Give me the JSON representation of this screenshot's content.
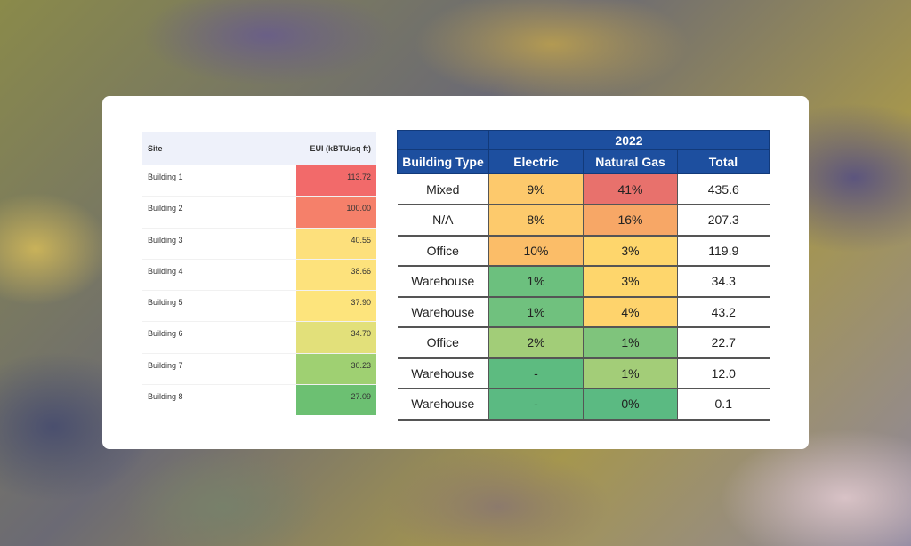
{
  "eui_table": {
    "headers": {
      "site": "Site",
      "eui": "EUI (kBTU/sq ft)"
    },
    "rows": [
      {
        "site": "Building 1",
        "eui": "113.72",
        "color": "#f26a6a"
      },
      {
        "site": "Building 2",
        "eui": "100.00",
        "color": "#f5806a"
      },
      {
        "site": "Building 3",
        "eui": "40.55",
        "color": "#fde07c"
      },
      {
        "site": "Building 4",
        "eui": "38.66",
        "color": "#fde27c"
      },
      {
        "site": "Building 5",
        "eui": "37.90",
        "color": "#fde47c"
      },
      {
        "site": "Building 6",
        "eui": "34.70",
        "color": "#e2e07a"
      },
      {
        "site": "Building 7",
        "eui": "30.23",
        "color": "#9fd072"
      },
      {
        "site": "Building 8",
        "eui": "27.09",
        "color": "#6cc072"
      }
    ]
  },
  "energy_table": {
    "year": "2022",
    "headers": {
      "type": "Building Type",
      "electric": "Electric",
      "gas": "Natural Gas",
      "total": "Total"
    },
    "rows": [
      {
        "type": "Mixed",
        "electric": "9%",
        "electric_color": "#fdc96c",
        "gas": "41%",
        "gas_color": "#e8716c",
        "total": "435.6"
      },
      {
        "type": "N/A",
        "electric": "8%",
        "electric_color": "#fdca6c",
        "gas": "16%",
        "gas_color": "#f7a766",
        "total": "207.3"
      },
      {
        "type": "Office",
        "electric": "10%",
        "electric_color": "#fbbd68",
        "gas": "3%",
        "gas_color": "#fed66c",
        "total": "119.9"
      },
      {
        "type": "Warehouse",
        "electric": "1%",
        "electric_color": "#6cc07e",
        "gas": "3%",
        "gas_color": "#fed66c",
        "total": "34.3"
      },
      {
        "type": "Warehouse",
        "electric": "1%",
        "electric_color": "#70c17e",
        "gas": "4%",
        "gas_color": "#fed36c",
        "total": "43.2"
      },
      {
        "type": "Office",
        "electric": "2%",
        "electric_color": "#a2cd78",
        "gas": "1%",
        "gas_color": "#7fc47c",
        "total": "22.7"
      },
      {
        "type": "Warehouse",
        "electric": "-",
        "electric_color": "#5dbb80",
        "gas": "1%",
        "gas_color": "#a3cd78",
        "total": "12.0"
      },
      {
        "type": "Warehouse",
        "electric": "-",
        "electric_color": "#5bba82",
        "gas": "0%",
        "gas_color": "#5bba82",
        "total": "0.1"
      }
    ]
  }
}
